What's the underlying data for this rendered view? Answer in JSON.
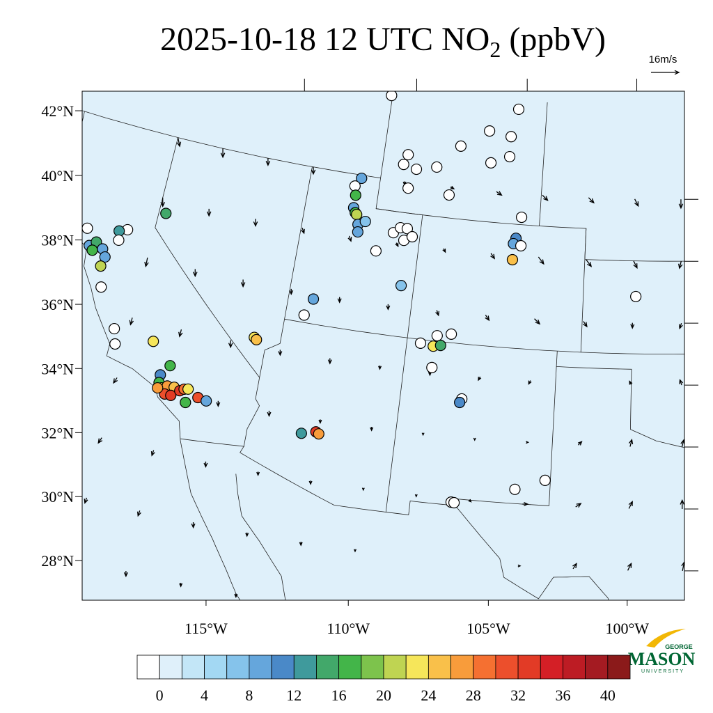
{
  "title": {
    "main": "2025-10-18 12 UTC NO",
    "sub": "2",
    "tail": " (ppbV)"
  },
  "wind_reference": {
    "value": 16,
    "label": "16m/s"
  },
  "lat_ticks": [
    {
      "value": 42,
      "label": "42°N"
    },
    {
      "value": 40,
      "label": "40°N"
    },
    {
      "value": 38,
      "label": "38°N"
    },
    {
      "value": 36,
      "label": "36°N"
    },
    {
      "value": 34,
      "label": "34°N"
    },
    {
      "value": 32,
      "label": "32°N"
    },
    {
      "value": 30,
      "label": "30°N"
    },
    {
      "value": 28,
      "label": "28°N"
    }
  ],
  "lon_ticks": [
    {
      "value": -115,
      "label": "115°W"
    },
    {
      "value": -110,
      "label": "110°W"
    },
    {
      "value": -105,
      "label": "105°W"
    },
    {
      "value": -100,
      "label": "100°W"
    }
  ],
  "colorbar": {
    "levels": [
      0,
      2,
      4,
      6,
      8,
      10,
      12,
      14,
      16,
      18,
      20,
      22,
      24,
      26,
      28,
      30,
      32,
      34,
      36,
      38,
      40
    ],
    "colors": [
      "#ffffff",
      "#dff0fa",
      "#c3e6f7",
      "#a3d8f3",
      "#85c3eb",
      "#65a6dc",
      "#4a89c8",
      "#3f9a9c",
      "#42a86a",
      "#43b549",
      "#7dc34c",
      "#bfd452",
      "#f6e65a",
      "#f9c04a",
      "#f89c3b",
      "#f57031",
      "#ec4f2c",
      "#e23b26",
      "#d41f26",
      "#bd1c24",
      "#a41b22",
      "#8b1a1a"
    ],
    "ticks": [
      0,
      4,
      8,
      12,
      16,
      20,
      24,
      28,
      32,
      36,
      40
    ]
  },
  "logo": {
    "top": "GEORGE",
    "name": "MASON",
    "bottom": "UNIVERSITY"
  },
  "wind": {
    "lons": [
      -120,
      -118,
      -116,
      -114,
      -112,
      -110,
      -108,
      -106,
      -104,
      -102,
      -100,
      -98
    ],
    "lats": [
      42,
      40,
      38,
      36,
      34,
      32,
      30,
      28
    ],
    "u": [
      [
        1,
        0,
        0,
        0,
        1,
        0,
        2,
        3,
        3,
        3,
        2,
        0
      ],
      [
        0,
        0,
        0,
        1,
        1,
        1,
        1,
        2,
        3,
        3,
        2,
        -1
      ],
      [
        -1,
        0,
        0,
        0,
        0,
        0,
        1,
        2,
        3,
        2,
        0,
        -1
      ],
      [
        -1,
        -1,
        0,
        0,
        0,
        0,
        0,
        -1,
        -1,
        0,
        -1,
        -1
      ],
      [
        -2,
        -1,
        0,
        0,
        0,
        0,
        0,
        0,
        1,
        2,
        1,
        1
      ],
      [
        -2,
        -1,
        0,
        0,
        0,
        0,
        0,
        1,
        3,
        3,
        2,
        0
      ],
      [
        -1,
        -1,
        0,
        0,
        0,
        0,
        0,
        0,
        1,
        2,
        2,
        1
      ],
      [
        -1,
        0,
        0,
        0,
        0,
        0,
        0,
        0,
        0,
        1,
        1,
        0
      ]
    ],
    "v": [
      [
        -5,
        -5,
        -4,
        -4,
        -3,
        -2,
        -1,
        -2,
        -3,
        -3,
        -4,
        -5
      ],
      [
        -5,
        -4,
        -4,
        -3,
        -3,
        -2,
        -2,
        -3,
        -4,
        -4,
        -4,
        -4
      ],
      [
        -5,
        -4,
        -4,
        -3,
        -3,
        -3,
        -3,
        -3,
        -3,
        -3,
        -3,
        -3
      ],
      [
        -4,
        -4,
        -4,
        -3,
        -3,
        -2,
        -2,
        -2,
        -2,
        0,
        2,
        3
      ],
      [
        -3,
        -3,
        -3,
        -3,
        -2,
        -2,
        -1,
        -1,
        0,
        2,
        4,
        4
      ],
      [
        -3,
        -3,
        -3,
        -2,
        -2,
        -1,
        -1,
        -1,
        0,
        2,
        4,
        5
      ],
      [
        -3,
        -3,
        -3,
        -2,
        -2,
        -1,
        0,
        0,
        0,
        3,
        4,
        5
      ],
      [
        -3,
        -3,
        -2,
        -2,
        -2,
        -1,
        0,
        0,
        1,
        3,
        4,
        5
      ]
    ]
  },
  "stations": [
    {
      "lon": -122.69,
      "lat": 38.41,
      "value": null
    },
    {
      "lon": -121.08,
      "lat": 38.71,
      "value": null
    },
    {
      "lon": -122.42,
      "lat": 37.89,
      "value": 9
    },
    {
      "lon": -122.18,
      "lat": 38.06,
      "value": 15
    },
    {
      "lon": -122.25,
      "lat": 37.77,
      "value": 17
    },
    {
      "lon": -121.86,
      "lat": 37.9,
      "value": 9
    },
    {
      "lon": -121.68,
      "lat": 37.67,
      "value": 9
    },
    {
      "lon": -121.75,
      "lat": 37.35,
      "value": 21
    },
    {
      "lon": -121.4,
      "lat": 38.6,
      "value": 13
    },
    {
      "lon": -121.32,
      "lat": 38.31,
      "value": null
    },
    {
      "lon": -121.51,
      "lat": 36.7,
      "value": null
    },
    {
      "lon": -120.58,
      "lat": 35.51,
      "value": null
    },
    {
      "lon": -120.4,
      "lat": 35.04,
      "value": null
    },
    {
      "lon": -119.71,
      "lat": 39.53,
      "value": 15
    },
    {
      "lon": -118.97,
      "lat": 35.42,
      "value": 23
    },
    {
      "lon": -118.11,
      "lat": 34.78,
      "value": 17
    },
    {
      "lon": -118.4,
      "lat": 34.42,
      "value": 11
    },
    {
      "lon": -118.38,
      "lat": 34.17,
      "value": 17
    },
    {
      "lon": -118.24,
      "lat": 34.02,
      "value": 23
    },
    {
      "lon": -118.04,
      "lat": 34.12,
      "value": 27
    },
    {
      "lon": -117.77,
      "lat": 34.13,
      "value": 25
    },
    {
      "lon": -118.07,
      "lat": 33.85,
      "value": 31
    },
    {
      "lon": -117.83,
      "lat": 33.85,
      "value": 33
    },
    {
      "lon": -117.53,
      "lat": 34.06,
      "value": 33
    },
    {
      "lon": -117.38,
      "lat": 34.14,
      "value": 29
    },
    {
      "lon": -117.23,
      "lat": 34.17,
      "value": 23
    },
    {
      "lon": -118.39,
      "lat": 33.99,
      "value": 27
    },
    {
      "lon": -117.22,
      "lat": 33.73,
      "value": 17
    },
    {
      "lon": -116.79,
      "lat": 33.97,
      "value": 31
    },
    {
      "lon": -116.45,
      "lat": 33.92,
      "value": 9
    },
    {
      "lon": -115.1,
      "lat": 36.24,
      "value": 23
    },
    {
      "lon": -115.0,
      "lat": 36.18,
      "value": 25
    },
    {
      "lon": -113.3,
      "lat": 37.24,
      "value": null
    },
    {
      "lon": -113.04,
      "lat": 37.8,
      "value": 9
    },
    {
      "lon": -112.63,
      "lat": 33.46,
      "value": 13
    },
    {
      "lon": -112.09,
      "lat": 33.58,
      "value": 33
    },
    {
      "lon": -111.97,
      "lat": 33.53,
      "value": 27
    },
    {
      "lon": -111.86,
      "lat": 41.9,
      "value": 9
    },
    {
      "lon": -112.09,
      "lat": 41.62,
      "value": null
    },
    {
      "lon": -112.0,
      "lat": 41.33,
      "value": 17
    },
    {
      "lon": -112.0,
      "lat": 40.92,
      "value": 9
    },
    {
      "lon": -111.9,
      "lat": 40.77,
      "value": 17
    },
    {
      "lon": -111.83,
      "lat": 40.72,
      "value": 21
    },
    {
      "lon": -111.71,
      "lat": 40.41,
      "value": 9
    },
    {
      "lon": -111.42,
      "lat": 40.54,
      "value": 7
    },
    {
      "lon": -111.67,
      "lat": 40.17,
      "value": 9
    },
    {
      "lon": -110.8,
      "lat": 39.65,
      "value": null
    },
    {
      "lon": -109.57,
      "lat": 38.65,
      "value": 7
    },
    {
      "lon": -110.18,
      "lat": 40.31,
      "value": null
    },
    {
      "lon": -109.91,
      "lat": 40.5,
      "value": null
    },
    {
      "lon": -109.62,
      "lat": 40.5,
      "value": null
    },
    {
      "lon": -109.7,
      "lat": 40.11,
      "value": null
    },
    {
      "lon": -109.37,
      "lat": 40.26,
      "value": null
    },
    {
      "lon": -111.1,
      "lat": 44.69,
      "value": null
    },
    {
      "lon": -110.0,
      "lat": 42.87,
      "value": null
    },
    {
      "lon": -109.56,
      "lat": 42.44,
      "value": null
    },
    {
      "lon": -110.14,
      "lat": 42.54,
      "value": null
    },
    {
      "lon": -109.81,
      "lat": 41.8,
      "value": null
    },
    {
      "lon": -108.69,
      "lat": 42.59,
      "value": null
    },
    {
      "lon": -107.74,
      "lat": 43.35,
      "value": null
    },
    {
      "lon": -106.54,
      "lat": 43.93,
      "value": null
    },
    {
      "lon": -105.56,
      "lat": 43.81,
      "value": null
    },
    {
      "lon": -105.32,
      "lat": 44.71,
      "value": null
    },
    {
      "lon": -105.55,
      "lat": 43.16,
      "value": null
    },
    {
      "lon": -106.35,
      "lat": 42.91,
      "value": null
    },
    {
      "lon": -108.02,
      "lat": 41.74,
      "value": null
    },
    {
      "lon": -104.83,
      "lat": 41.24,
      "value": null
    },
    {
      "lon": -105.0,
      "lat": 40.55,
      "value": 11
    },
    {
      "lon": -105.09,
      "lat": 40.37,
      "value": 9
    },
    {
      "lon": -104.77,
      "lat": 40.32,
      "value": null
    },
    {
      "lon": -105.08,
      "lat": 39.85,
      "value": 25
    },
    {
      "lon": -99.88,
      "lat": 38.85,
      "value": null
    },
    {
      "lon": -108.5,
      "lat": 36.88,
      "value": null
    },
    {
      "lon": -107.98,
      "lat": 36.83,
      "value": 23
    },
    {
      "lon": -107.87,
      "lat": 37.18,
      "value": null
    },
    {
      "lon": -107.31,
      "lat": 37.28,
      "value": null
    },
    {
      "lon": -107.69,
      "lat": 36.88,
      "value": 15
    },
    {
      "lon": -107.94,
      "lat": 36.14,
      "value": null
    },
    {
      "lon": -106.64,
      "lat": 35.23,
      "value": null
    },
    {
      "lon": -106.71,
      "lat": 35.11,
      "value": 11
    },
    {
      "lon": -104.32,
      "lat": 32.46,
      "value": null
    },
    {
      "lon": -103.2,
      "lat": 32.81,
      "value": null
    },
    {
      "lon": -106.67,
      "lat": 31.88,
      "value": null
    },
    {
      "lon": -106.56,
      "lat": 31.87,
      "value": null
    }
  ]
}
